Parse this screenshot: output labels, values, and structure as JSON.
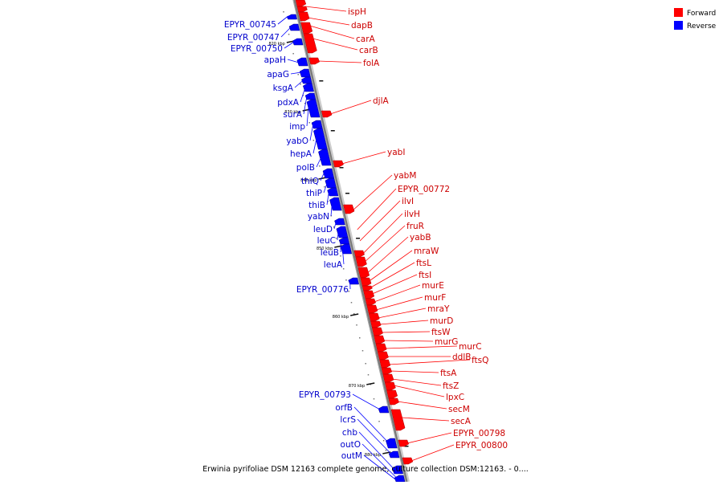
{
  "legend": {
    "forward_label": "Forward",
    "reverse_label": "Reverse",
    "forward_color": "#ff0000",
    "reverse_color": "#0000ff"
  },
  "caption": "Erwinia pyrifoliae DSM 12163 complete genome, culture collection DSM:12163. - 0....",
  "axis": {
    "unit": "kbp",
    "ticks": [
      {
        "label": "820 kbp"
      },
      {
        "label": "830 kbp"
      },
      {
        "label": "840 kbp"
      },
      {
        "label": "850 kbp"
      },
      {
        "label": "860 kbp"
      },
      {
        "label": "870 kbp"
      },
      {
        "label": "880 kbp"
      }
    ]
  },
  "genes": {
    "forward": [
      {
        "name": "ispH"
      },
      {
        "name": "dapB"
      },
      {
        "name": "carA"
      },
      {
        "name": "carB"
      },
      {
        "name": "folA"
      },
      {
        "name": "djlA"
      },
      {
        "name": "yabI"
      },
      {
        "name": "yabM"
      },
      {
        "name": "EPYR_00772"
      },
      {
        "name": "ilvI"
      },
      {
        "name": "ilvH"
      },
      {
        "name": "fruR"
      },
      {
        "name": "yabB"
      },
      {
        "name": "mraW"
      },
      {
        "name": "ftsL"
      },
      {
        "name": "ftsI"
      },
      {
        "name": "murE"
      },
      {
        "name": "murF"
      },
      {
        "name": "mraY"
      },
      {
        "name": "murD"
      },
      {
        "name": "ftsW"
      },
      {
        "name": "murG"
      },
      {
        "name": "murC"
      },
      {
        "name": "ddlB"
      },
      {
        "name": "ftsQ"
      },
      {
        "name": "ftsA"
      },
      {
        "name": "ftsZ"
      },
      {
        "name": "lpxC"
      },
      {
        "name": "secM"
      },
      {
        "name": "secA"
      },
      {
        "name": "EPYR_00798"
      },
      {
        "name": "EPYR_00800"
      }
    ],
    "reverse": [
      {
        "name": "EPYR_00745"
      },
      {
        "name": "EPYR_00747"
      },
      {
        "name": "EPYR_00750"
      },
      {
        "name": "apaH"
      },
      {
        "name": "apaG"
      },
      {
        "name": "ksgA"
      },
      {
        "name": "pdxA"
      },
      {
        "name": "surA"
      },
      {
        "name": "imp"
      },
      {
        "name": "yabO"
      },
      {
        "name": "hepA"
      },
      {
        "name": "polB"
      },
      {
        "name": "thiQ"
      },
      {
        "name": "thiP"
      },
      {
        "name": "thiB"
      },
      {
        "name": "yabN"
      },
      {
        "name": "leuD"
      },
      {
        "name": "leuC"
      },
      {
        "name": "leuB"
      },
      {
        "name": "leuA"
      },
      {
        "name": "EPYR_00776"
      },
      {
        "name": "EPYR_00793"
      },
      {
        "name": "orfB"
      },
      {
        "name": "lcrS"
      },
      {
        "name": "chb"
      },
      {
        "name": "outO"
      },
      {
        "name": "outM"
      }
    ]
  }
}
